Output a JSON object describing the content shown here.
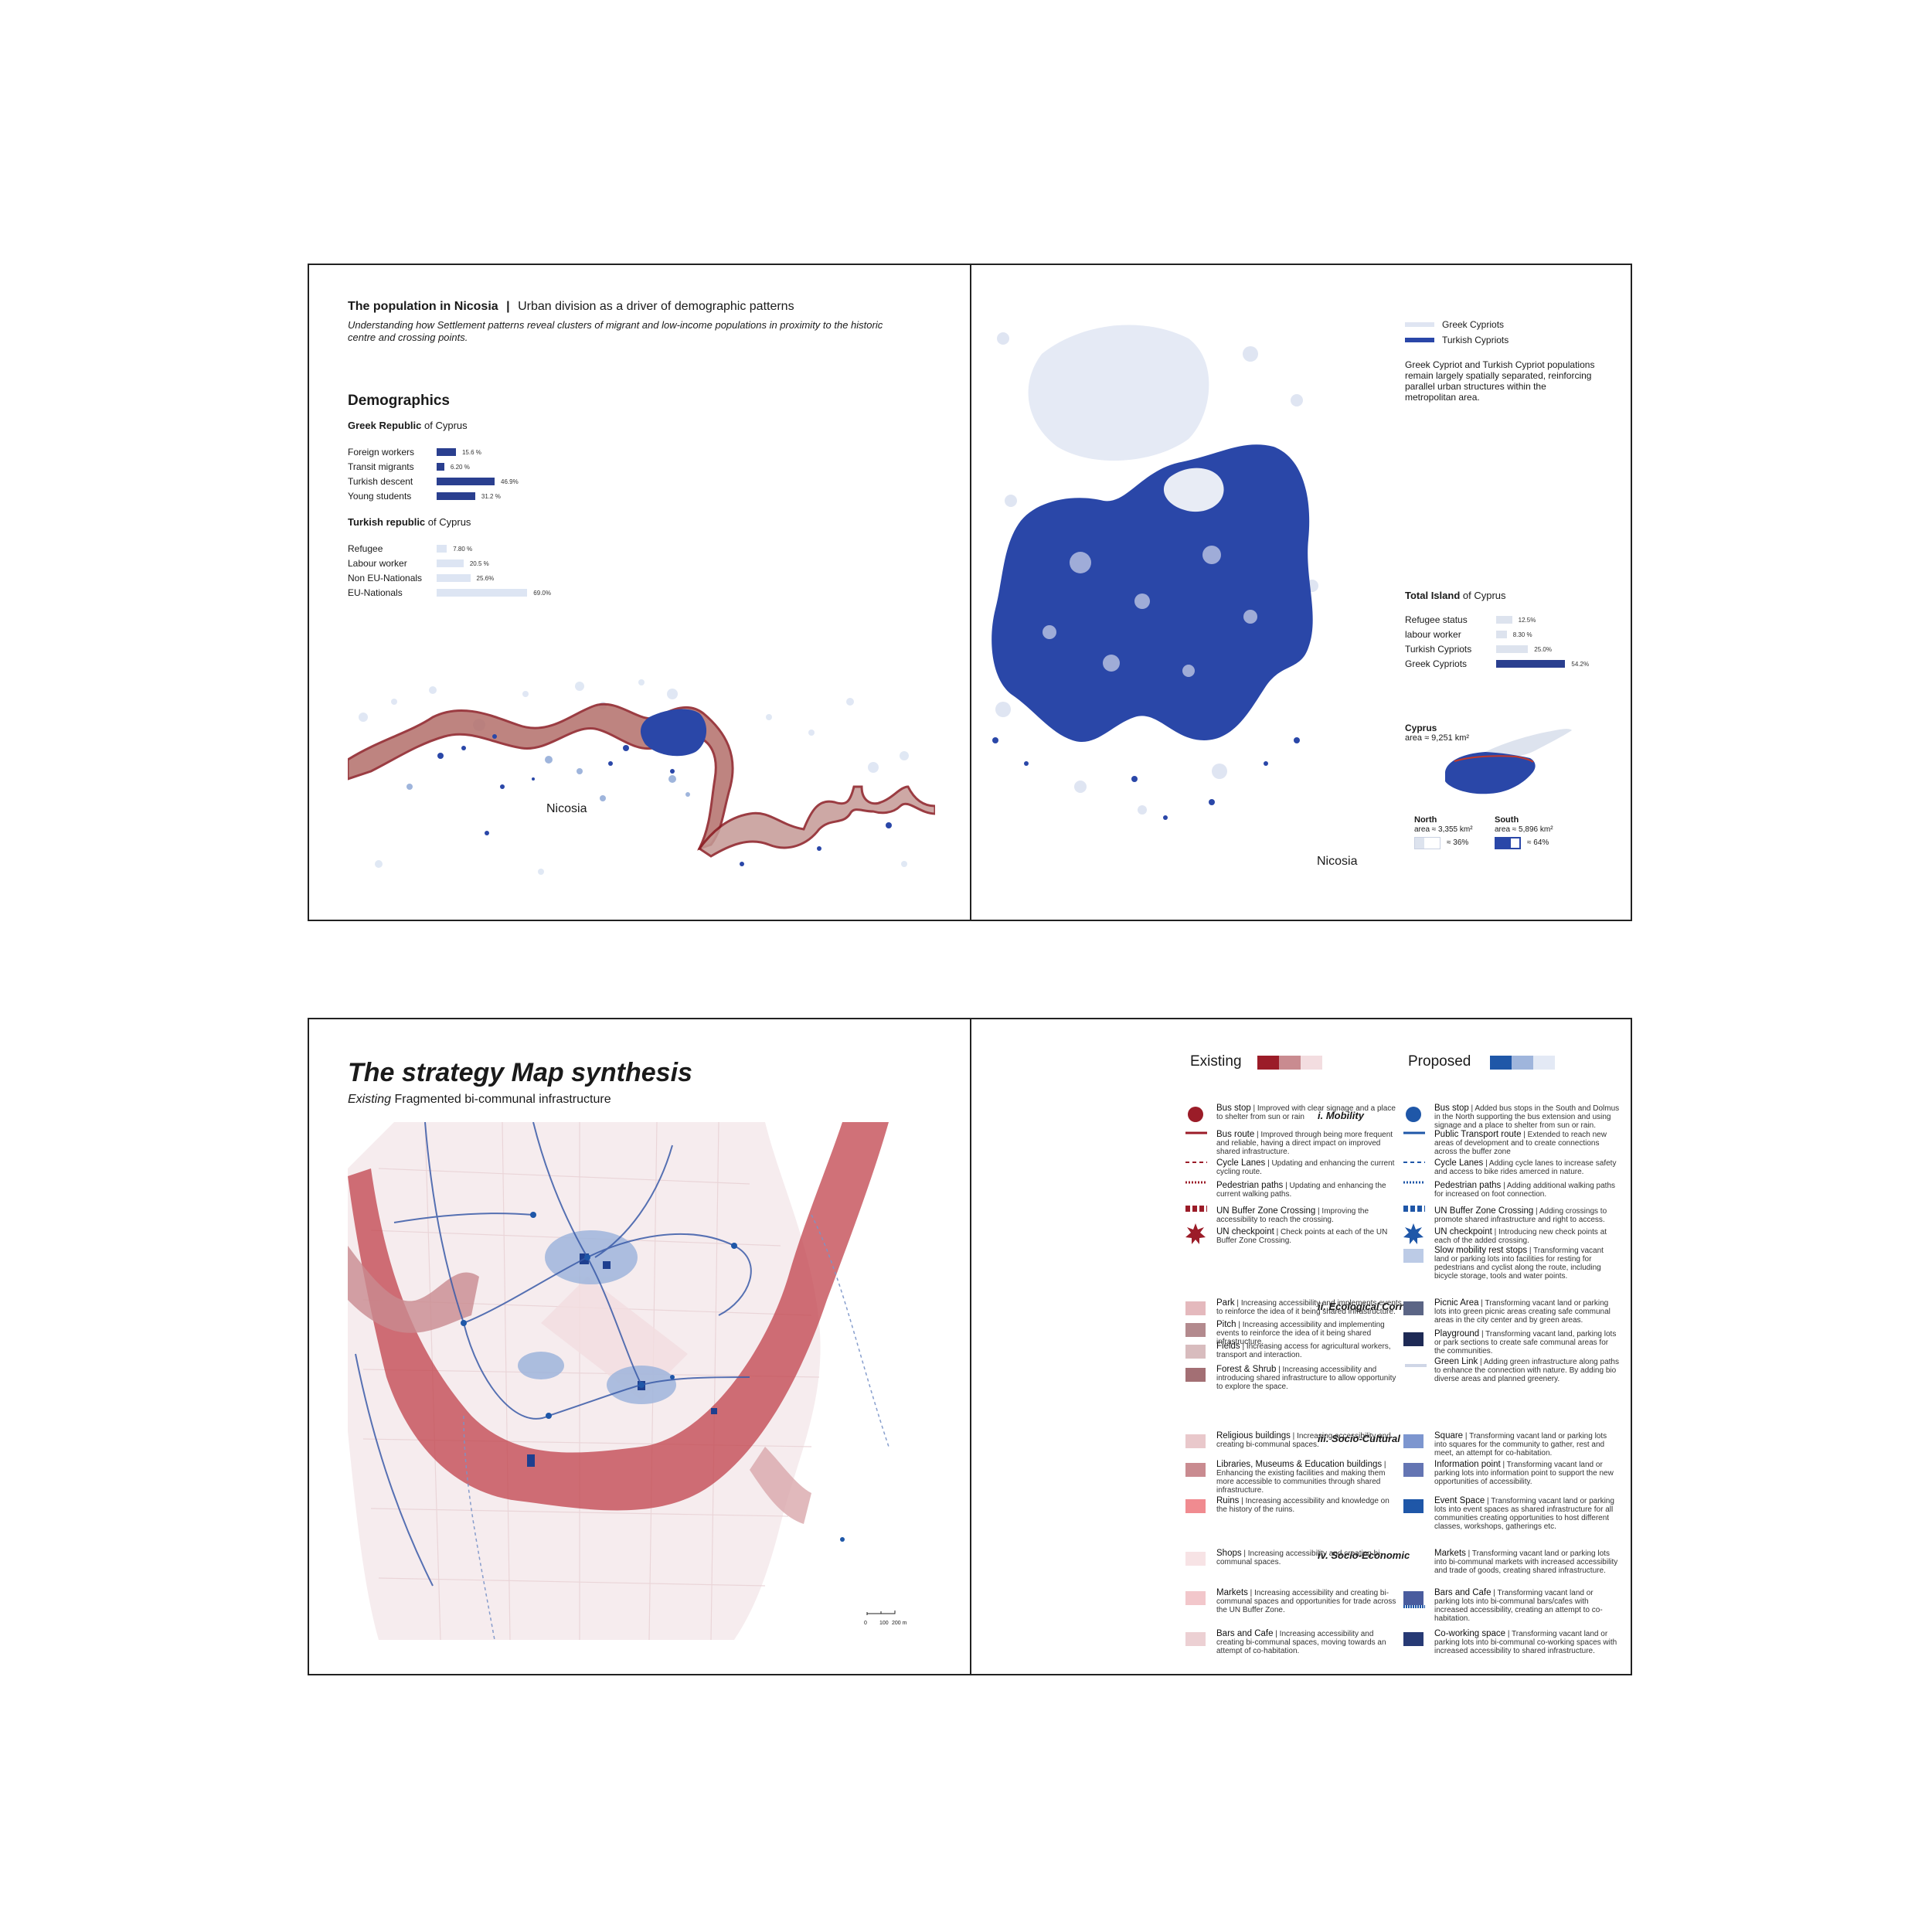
{
  "spread1": {
    "title_bold": "The population in Nicosia",
    "title_rest": "Urban division as a driver of demographic patterns",
    "subtitle": "Understanding how Settlement patterns reveal clusters of migrant and low-income populations in proximity to the historic centre and crossing points.",
    "demographics_heading": "Demographics",
    "greek_heading_bold": "Greek Republic",
    "greek_heading_rest": "of Cyprus",
    "greek_rows": [
      {
        "label": "Foreign workers",
        "value": "15.6 %",
        "num": 15.6
      },
      {
        "label": "Transit migrants",
        "value": "6.20 %",
        "num": 6.2
      },
      {
        "label": "Turkish descent",
        "value": "46.9%",
        "num": 46.9
      },
      {
        "label": "Young students",
        "value": "31.2 %",
        "num": 31.2
      }
    ],
    "turkish_heading_bold": "Turkish republic",
    "turkish_heading_rest": "of Cyprus",
    "turkish_rows": [
      {
        "label": "Refugee",
        "value": "7.80 %",
        "num": 7.8
      },
      {
        "label": "Labour worker",
        "value": "20.5 %",
        "num": 20.5
      },
      {
        "label": "Non EU-Nationals",
        "value": "25.6%",
        "num": 25.6
      },
      {
        "label": "EU-Nationals",
        "value": "69.0%",
        "num": 69.0
      }
    ],
    "map_label_left": "Nicosia",
    "legend_greek": "Greek Cypriots",
    "legend_turkish": "Turkish Cypriots",
    "separation_text": "Greek Cypriot and Turkish Cypriot populations remain largely spatially separated, reinforcing parallel urban structures within the metropolitan area.",
    "total_heading_bold": "Total Island",
    "total_heading_rest": "of Cyprus",
    "total_rows": [
      {
        "label": "Refugee status",
        "value": "12.5%",
        "num": 12.5
      },
      {
        "label": "labour worker",
        "value": "8.30 %",
        "num": 8.3
      },
      {
        "label": "Turkish Cypriots",
        "value": "25.0%",
        "num": 25.0
      },
      {
        "label": "Greek Cypriots",
        "value": "54.2%",
        "num": 54.2
      }
    ],
    "cyprus_label": "Cyprus",
    "cyprus_area": "area ≈ 9,251 km²",
    "north_label": "North",
    "north_area": "area ≈ 3,355 km²",
    "north_share": "≈ 36%",
    "south_label": "South",
    "south_area": "area ≈ 5,896 km²",
    "south_share": "≈ 64%",
    "map_label_right": "Nicosia"
  },
  "spread2": {
    "title": "The strategy Map synthesis",
    "subtitle_italic": "Existing",
    "subtitle_rest": "Fragmented bi-communal infrastructure",
    "scale_labels": [
      "0",
      "100",
      "200 m"
    ],
    "existing_label": "Existing",
    "proposed_label": "Proposed",
    "colors": {
      "existing": [
        "#9b1c28",
        "#c98b90",
        "#f3dde0"
      ],
      "proposed": [
        "#1f57a8",
        "#9fb5dc",
        "#e3e9f5"
      ]
    },
    "sections": [
      {
        "title": "i. Mobility"
      },
      {
        "title": "ii. Ecological Corridor"
      },
      {
        "title": "iii. Socio-Cultural"
      },
      {
        "title": "iv. Socio-Economic"
      }
    ],
    "existing_items": [
      {
        "name": "Bus stop",
        "desc": "Improved with clear signage and a place to shelter from sun or rain"
      },
      {
        "name": "Bus route",
        "desc": "Improved through being more frequent and reliable, having a direct impact on improved shared infrastructure."
      },
      {
        "name": "Cycle Lanes",
        "desc": "Updating and enhancing the current cycling route."
      },
      {
        "name": "Pedestrian paths",
        "desc": "Updating and enhancing the current walking paths."
      },
      {
        "name": "UN Buffer Zone Crossing",
        "desc": "Improving the accessibility to reach the crossing."
      },
      {
        "name": "UN checkpoint",
        "desc": "Check points at each of the UN Buffer Zone Crossing."
      },
      {
        "name": "Park",
        "desc": "Increasing accessibility and implements events to reinforce the idea of it being shared infrastructure."
      },
      {
        "name": "Pitch",
        "desc": "Increasing accessibility and implementing events to reinforce the idea of it being shared infrastructure."
      },
      {
        "name": "Fields",
        "desc": "Increasing access for agricultural workers, transport and interaction."
      },
      {
        "name": "Forest & Shrub",
        "desc": "Increasing accessibility and introducing shared infrastructure to allow opportunity to explore the space."
      },
      {
        "name": "Religious buildings",
        "desc": "Increasing accessibility and creating bi-communal spaces."
      },
      {
        "name": "Libraries, Museums & Education buildings",
        "desc": "Enhancing the existing facilities and making them more accessible to communities through shared infrastructure."
      },
      {
        "name": "Ruins",
        "desc": "Increasing accessibility and knowledge on the history of the ruins."
      },
      {
        "name": "Shops",
        "desc": "Increasing accessibility and creating bi-communal spaces."
      },
      {
        "name": "Markets",
        "desc": "Increasing accessibility and creating bi-communal spaces and opportunities for trade across the UN Buffer Zone."
      },
      {
        "name": "Bars and Cafe",
        "desc": "Increasing accessibility and creating bi-communal spaces, moving towards an attempt of co-habitation."
      }
    ],
    "proposed_items": [
      {
        "name": "Bus stop",
        "desc": "Added bus stops in the South and Dolmus in the North supporting the bus extension and using signage and a place to shelter from sun or rain."
      },
      {
        "name": "Public Transport route",
        "desc": "Extended to reach new areas of development and to create connections across the buffer zone"
      },
      {
        "name": "Cycle Lanes",
        "desc": "Adding cycle lanes to increase safety and access to bike rides amerced in nature."
      },
      {
        "name": "Pedestrian paths",
        "desc": "Adding additional walking paths for increased on foot connection."
      },
      {
        "name": "UN Buffer Zone Crossing",
        "desc": "Adding crossings to promote shared infrastructure and right to access."
      },
      {
        "name": "UN checkpoint",
        "desc": "Introducing new check points at each of the added crossing."
      },
      {
        "name": "Slow mobility rest stops",
        "desc": "Transforming vacant land or parking lots into facilities for resting for pedestrians and cyclist along the route, including bicycle storage, tools and water points."
      },
      {
        "name": "Picnic Area",
        "desc": "Transforming vacant land or parking lots into green picnic areas creating safe communal areas in the city center and by green areas."
      },
      {
        "name": "Playground",
        "desc": "Transforming vacant land, parking lots or park sections to create safe communal areas for the communities."
      },
      {
        "name": "Green Link",
        "desc": "Adding green infrastructure along paths to enhance the connection with nature. By adding bio diverse areas and planned greenery."
      },
      {
        "name": "Square",
        "desc": "Transforming vacant land or parking lots into squares for the community to gather, rest and meet, an attempt for co-habitation."
      },
      {
        "name": "Information point",
        "desc": "Transforming vacant land or parking lots into information point to support the new opportunities of accessibility."
      },
      {
        "name": "Event Space",
        "desc": "Transforming vacant land or parking lots into event spaces as shared infrastructure for all communities creating opportunities to host different classes, workshops, gatherings etc."
      },
      {
        "name": "Markets",
        "desc": "Transforming vacant land or parking lots into bi-communal markets with increased accessibility and trade of goods, creating shared infrastructure."
      },
      {
        "name": "Bars and Cafe",
        "desc": "Transforming vacant land or parking lots into bi-communal bars/cafes with increased accessibility, creating an attempt to co-habitation."
      },
      {
        "name": "Co-working space",
        "desc": "Transforming vacant land or parking lots into bi-communal co-working spaces with increased accessibility to shared infrastructure."
      }
    ]
  }
}
